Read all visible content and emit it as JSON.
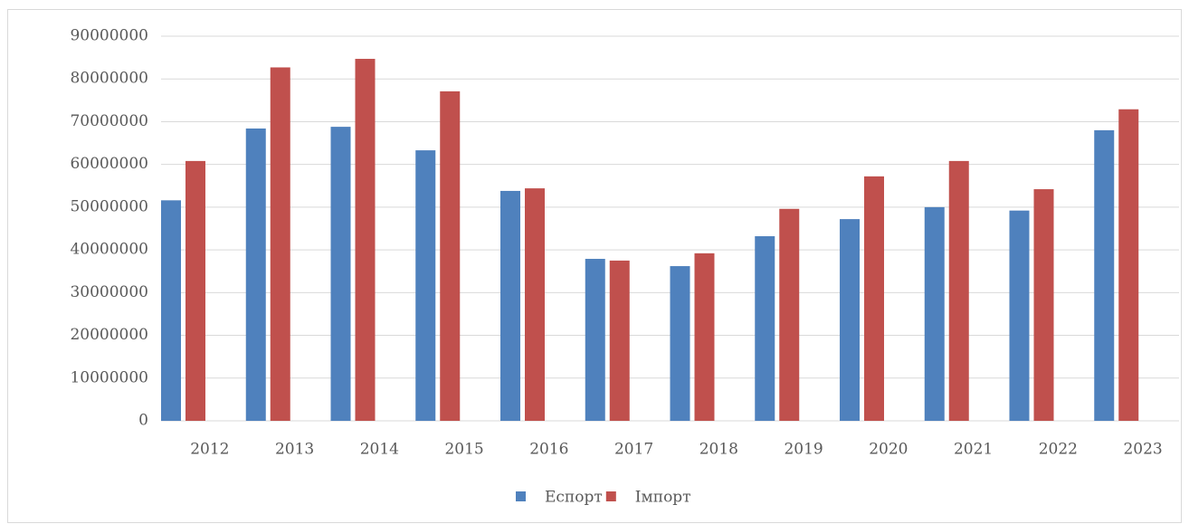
{
  "chart_data": {
    "type": "bar",
    "categories": [
      "2012",
      "2013",
      "2014",
      "2015",
      "2016",
      "2017",
      "2018",
      "2019",
      "2020",
      "2021",
      "2022",
      "2023"
    ],
    "series": [
      {
        "name": "Еспорт",
        "color": "#4f81bd",
        "values": [
          51600000,
          68400000,
          68800000,
          63300000,
          53800000,
          37900000,
          36200000,
          43200000,
          47200000,
          50000000,
          49200000,
          68000000
        ]
      },
      {
        "name": "Імпорт",
        "color": "#c0504d",
        "values": [
          60800000,
          82700000,
          84700000,
          77100000,
          54400000,
          37500000,
          39200000,
          49600000,
          57200000,
          60800000,
          54200000,
          72900000
        ]
      }
    ],
    "ylim": [
      0,
      90000000
    ],
    "yticks": [
      0,
      10000000,
      20000000,
      30000000,
      40000000,
      50000000,
      60000000,
      70000000,
      80000000,
      90000000
    ],
    "grid": true,
    "legend": "bottom"
  }
}
